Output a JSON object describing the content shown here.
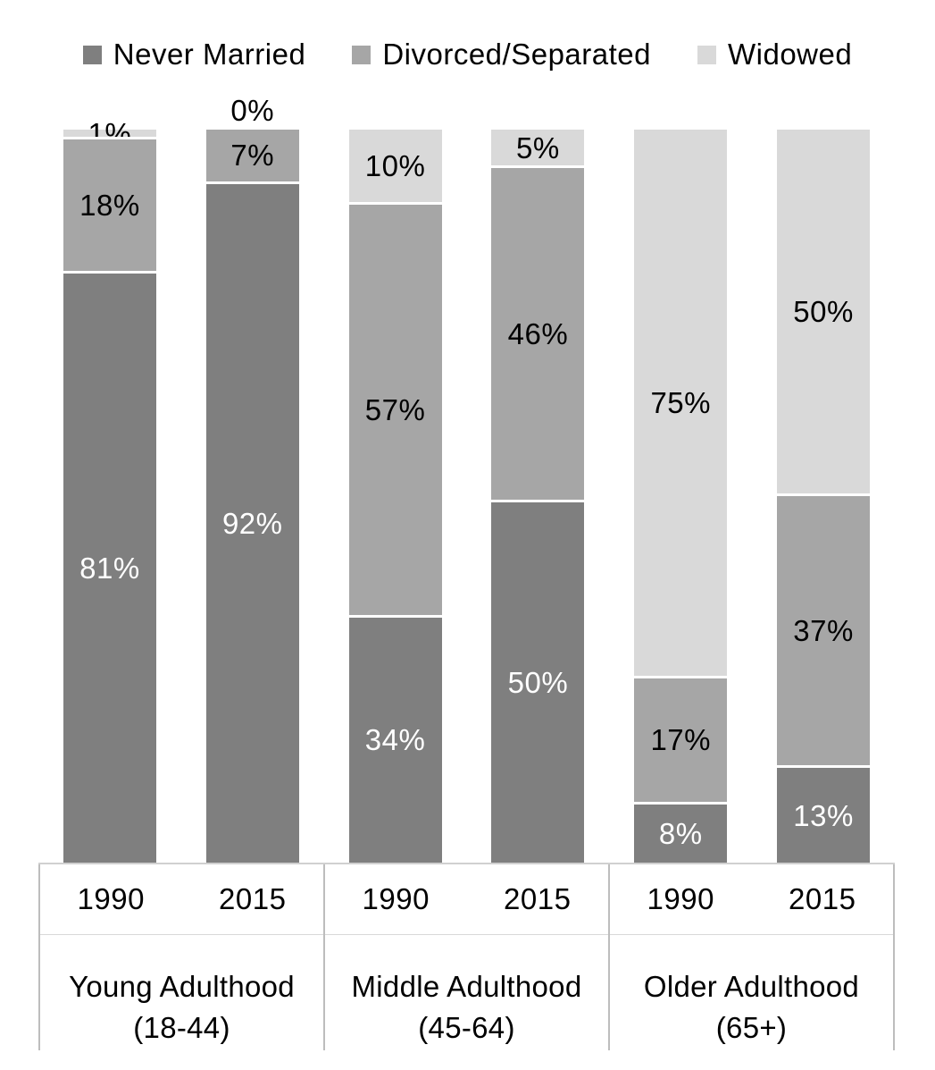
{
  "chart_data": {
    "type": "bar",
    "subtype": "stacked-100-percent",
    "title": "",
    "orientation": "vertical",
    "grid": false,
    "legend_position": "top",
    "value_label_format": "percent",
    "series": [
      {
        "key": "never_married",
        "name": "Never Married",
        "color": "#7f7f7f",
        "label_color": "#ffffff"
      },
      {
        "key": "divorced_separated",
        "name": "Divorced/Separated",
        "color": "#a6a6a6",
        "label_color": "#000000"
      },
      {
        "key": "widowed",
        "name": "Widowed",
        "color": "#d9d9d9",
        "label_color": "#000000"
      }
    ],
    "stack_order_top_to_bottom": [
      "widowed",
      "divorced_separated",
      "never_married"
    ],
    "groups": [
      {
        "label": "Young Adulthood",
        "sublabel": "(18-44)",
        "bars": [
          {
            "year": "1990",
            "values": [
              81,
              18,
              1
            ]
          },
          {
            "year": "2015",
            "values": [
              92,
              7,
              0
            ]
          }
        ]
      },
      {
        "label": "Middle Adulthood",
        "sublabel": "(45-64)",
        "bars": [
          {
            "year": "1990",
            "values": [
              34,
              57,
              10
            ]
          },
          {
            "year": "2015",
            "values": [
              50,
              46,
              5
            ]
          }
        ]
      },
      {
        "label": "Older Adulthood",
        "sublabel": "(65+)",
        "bars": [
          {
            "year": "1990",
            "values": [
              8,
              17,
              75
            ]
          },
          {
            "year": "2015",
            "values": [
              13,
              37,
              50
            ]
          }
        ]
      }
    ],
    "axis_colors": {
      "axis_line": "#d0d0d0",
      "panel_border": "#bdbdbd",
      "row_divider": "#d9d9d9"
    },
    "background": "#ffffff"
  }
}
